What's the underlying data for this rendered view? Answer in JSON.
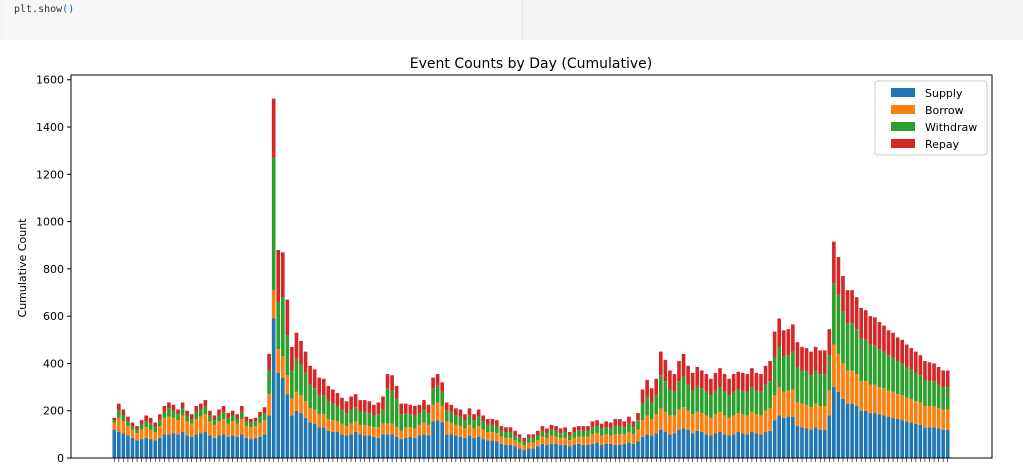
{
  "code_cell": {
    "fn_text": "plt.show",
    "paren_text": "()"
  },
  "chart_data": {
    "type": "bar",
    "stacked": true,
    "title": "Event Counts by Day (Cumulative)",
    "xlabel": "",
    "ylabel": "Cumulative Count",
    "ylim": [
      0,
      1620
    ],
    "yticks": [
      0,
      200,
      400,
      600,
      800,
      1000,
      1200,
      1400,
      1600
    ],
    "grid": false,
    "legend_position": "top-right",
    "x_tick_labels_visible": false,
    "num_days": 184,
    "series": [
      {
        "name": "Supply",
        "color": "#1f77b4",
        "values": [
          120,
          110,
          105,
          95,
          85,
          75,
          80,
          85,
          80,
          75,
          85,
          100,
          100,
          105,
          100,
          110,
          95,
          90,
          100,
          105,
          110,
          95,
          85,
          95,
          100,
          90,
          95,
          90,
          100,
          85,
          80,
          85,
          90,
          100,
          180,
          590,
          360,
          340,
          270,
          180,
          200,
          190,
          170,
          150,
          145,
          130,
          130,
          115,
          110,
          110,
          100,
          95,
          100,
          110,
          100,
          95,
          95,
          90,
          85,
          100,
          100,
          100,
          90,
          80,
          85,
          90,
          85,
          95,
          100,
          95,
          155,
          160,
          150,
          100,
          100,
          95,
          90,
          85,
          95,
          85,
          90,
          80,
          75,
          75,
          70,
          60,
          55,
          55,
          50,
          40,
          35,
          40,
          40,
          50,
          60,
          55,
          60,
          60,
          55,
          55,
          50,
          55,
          60,
          55,
          55,
          60,
          65,
          55,
          60,
          60,
          55,
          55,
          60,
          65,
          60,
          70,
          90,
          100,
          95,
          105,
          120,
          110,
          100,
          105,
          120,
          125,
          120,
          105,
          115,
          110,
          100,
          95,
          105,
          110,
          100,
          95,
          100,
          110,
          105,
          100,
          110,
          105,
          100,
          110,
          115,
          160,
          180,
          170,
          175,
          175,
          135,
          130,
          125,
          120,
          130,
          120,
          120,
          180,
          300,
          280,
          250,
          230,
          230,
          220,
          200,
          200,
          190,
          190,
          185,
          180,
          175,
          170,
          165,
          160,
          155,
          150,
          145,
          140,
          130,
          130,
          130,
          125,
          120,
          120
        ]
      },
      {
        "name": "Borrow",
        "color": "#ff7f0e",
        "values": [
          30,
          60,
          50,
          40,
          35,
          30,
          40,
          45,
          40,
          35,
          50,
          70,
          75,
          65,
          60,
          70,
          60,
          55,
          65,
          70,
          75,
          60,
          55,
          60,
          65,
          55,
          60,
          55,
          65,
          50,
          50,
          50,
          60,
          60,
          90,
          120,
          100,
          90,
          80,
          70,
          80,
          75,
          70,
          60,
          60,
          55,
          55,
          50,
          50,
          45,
          45,
          40,
          45,
          45,
          40,
          45,
          40,
          40,
          45,
          45,
          45,
          45,
          40,
          35,
          45,
          40,
          40,
          45,
          50,
          45,
          70,
          75,
          70,
          55,
          50,
          45,
          45,
          40,
          45,
          40,
          45,
          40,
          35,
          35,
          35,
          30,
          30,
          30,
          25,
          25,
          20,
          25,
          25,
          25,
          30,
          30,
          35,
          30,
          30,
          30,
          25,
          30,
          30,
          35,
          35,
          40,
          40,
          40,
          40,
          35,
          45,
          45,
          40,
          45,
          40,
          50,
          70,
          80,
          70,
          80,
          90,
          85,
          80,
          75,
          85,
          90,
          80,
          80,
          80,
          80,
          80,
          75,
          80,
          85,
          80,
          75,
          80,
          80,
          80,
          80,
          85,
          80,
          80,
          90,
          95,
          105,
          120,
          110,
          110,
          115,
          100,
          100,
          100,
          95,
          100,
          100,
          100,
          105,
          180,
          160,
          150,
          140,
          140,
          135,
          125,
          125,
          120,
          120,
          115,
          115,
          110,
          110,
          105,
          105,
          100,
          100,
          95,
          95,
          90,
          90,
          90,
          85,
          85,
          85
        ]
      },
      {
        "name": "Withdraw",
        "color": "#2ca02c",
        "values": [
          10,
          30,
          25,
          20,
          15,
          15,
          20,
          25,
          25,
          20,
          25,
          25,
          35,
          30,
          25,
          30,
          25,
          20,
          30,
          30,
          35,
          25,
          20,
          25,
          30,
          25,
          25,
          20,
          30,
          20,
          20,
          20,
          25,
          30,
          100,
          560,
          200,
          250,
          170,
          120,
          140,
          130,
          120,
          100,
          90,
          80,
          80,
          75,
          70,
          65,
          60,
          55,
          60,
          60,
          55,
          55,
          55,
          50,
          55,
          60,
          150,
          140,
          120,
          70,
          60,
          55,
          55,
          50,
          55,
          50,
          70,
          70,
          60,
          45,
          45,
          40,
          40,
          35,
          40,
          35,
          40,
          35,
          30,
          30,
          30,
          25,
          25,
          25,
          20,
          20,
          15,
          20,
          20,
          20,
          25,
          20,
          25,
          25,
          20,
          25,
          20,
          25,
          25,
          25,
          25,
          30,
          30,
          30,
          30,
          30,
          35,
          35,
          30,
          35,
          30,
          40,
          70,
          80,
          70,
          80,
          140,
          130,
          110,
          100,
          120,
          130,
          110,
          100,
          110,
          105,
          100,
          95,
          100,
          105,
          100,
          95,
          100,
          100,
          100,
          100,
          105,
          100,
          100,
          110,
          115,
          160,
          170,
          150,
          150,
          160,
          150,
          140,
          140,
          135,
          140,
          135,
          135,
          150,
          260,
          250,
          220,
          200,
          200,
          190,
          180,
          175,
          170,
          165,
          160,
          155,
          150,
          145,
          140,
          135,
          130,
          125,
          120,
          115,
          110,
          105,
          105,
          100,
          95,
          95
        ]
      },
      {
        "name": "Repay",
        "color": "#d62728",
        "values": [
          10,
          30,
          25,
          20,
          15,
          15,
          20,
          25,
          25,
          20,
          25,
          25,
          25,
          25,
          20,
          25,
          20,
          20,
          25,
          25,
          25,
          20,
          20,
          25,
          25,
          20,
          20,
          20,
          25,
          20,
          15,
          15,
          20,
          25,
          70,
          250,
          220,
          190,
          150,
          100,
          110,
          100,
          90,
          80,
          80,
          75,
          70,
          65,
          60,
          55,
          50,
          50,
          55,
          55,
          50,
          50,
          50,
          45,
          50,
          55,
          60,
          65,
          55,
          45,
          40,
          40,
          40,
          35,
          40,
          35,
          45,
          50,
          40,
          35,
          30,
          30,
          30,
          25,
          30,
          25,
          30,
          25,
          25,
          25,
          25,
          20,
          20,
          20,
          20,
          15,
          15,
          15,
          15,
          20,
          20,
          20,
          20,
          20,
          20,
          20,
          15,
          20,
          20,
          20,
          20,
          25,
          25,
          20,
          25,
          25,
          30,
          30,
          25,
          30,
          25,
          30,
          60,
          70,
          60,
          70,
          100,
          90,
          80,
          75,
          85,
          95,
          80,
          75,
          80,
          75,
          75,
          70,
          75,
          80,
          75,
          70,
          75,
          75,
          75,
          75,
          80,
          75,
          75,
          80,
          85,
          110,
          120,
          110,
          110,
          115,
          105,
          100,
          100,
          100,
          100,
          100,
          100,
          110,
          175,
          160,
          150,
          140,
          140,
          135,
          130,
          125,
          120,
          120,
          115,
          110,
          105,
          105,
          100,
          100,
          95,
          90,
          90,
          85,
          80,
          80,
          75,
          75,
          70,
          70
        ]
      }
    ]
  }
}
